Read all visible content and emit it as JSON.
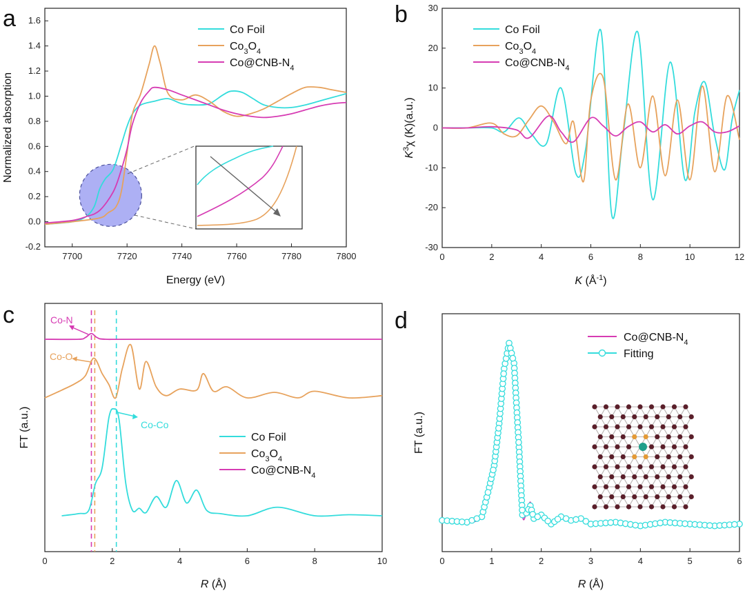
{
  "colors": {
    "cyan": "#33dcdc",
    "orange": "#e7a25c",
    "magenta": "#d63bb3",
    "gray": "#666666",
    "circle": "#8a8ef0"
  },
  "chart_data": [
    {
      "panel": "a",
      "type": "line",
      "xlabel": "Energy (eV)",
      "ylabel": "Normalized absorption",
      "xlim": [
        7690,
        7800
      ],
      "ylim": [
        -0.2,
        1.7
      ],
      "xticks": [
        7700,
        7720,
        7740,
        7760,
        7780,
        7800
      ],
      "xticklabels": [
        "7700",
        "7720",
        "7740",
        "7760",
        "7780",
        "7800"
      ],
      "yticks": [
        -0.2,
        0.0,
        0.2,
        0.4,
        0.6,
        0.8,
        1.0,
        1.2,
        1.4,
        1.6
      ],
      "yticklabels": [
        "-0.2",
        "0.0",
        "0.2",
        "0.4",
        "0.6",
        "0.8",
        "1.0",
        "1.2",
        "1.4",
        "1.6"
      ],
      "legend": [
        {
          "label": "Co Foil",
          "color": "#33dcdc"
        },
        {
          "label": "Co",
          "sub": "3",
          "label2": "O",
          "sub2": "4",
          "color": "#e7a25c"
        },
        {
          "label": "Co@CNB-N",
          "sub": "4",
          "color": "#d63bb3"
        }
      ],
      "series": [
        {
          "name": "Co Foil",
          "color": "#33dcdc",
          "x": [
            7690,
            7700,
            7705,
            7708,
            7710,
            7712,
            7715,
            7718,
            7720,
            7722,
            7725,
            7730,
            7735,
            7740,
            7745,
            7750,
            7755,
            7758,
            7762,
            7766,
            7770,
            7775,
            7780,
            7785,
            7790,
            7795,
            7800
          ],
          "y": [
            -0.02,
            0.0,
            0.04,
            0.12,
            0.26,
            0.34,
            0.42,
            0.62,
            0.76,
            0.86,
            0.93,
            0.96,
            0.98,
            0.94,
            0.93,
            0.94,
            1.01,
            1.04,
            1.03,
            0.98,
            0.93,
            0.91,
            0.91,
            0.93,
            0.96,
            0.99,
            1.02
          ]
        },
        {
          "name": "Co3O4",
          "color": "#e7a25c",
          "x": [
            7690,
            7700,
            7710,
            7713,
            7716,
            7718,
            7720,
            7722,
            7725,
            7728,
            7730,
            7732,
            7735,
            7740,
            7745,
            7750,
            7755,
            7760,
            7765,
            7770,
            7775,
            7780,
            7785,
            7790,
            7795,
            7800
          ],
          "y": [
            -0.02,
            0.0,
            0.03,
            0.07,
            0.12,
            0.25,
            0.55,
            0.86,
            1.02,
            1.25,
            1.4,
            1.27,
            1.02,
            0.97,
            1.01,
            0.96,
            0.88,
            0.84,
            0.86,
            0.9,
            0.96,
            1.02,
            1.07,
            1.07,
            1.05,
            1.03
          ]
        },
        {
          "name": "Co@CNB-N4",
          "color": "#d63bb3",
          "x": [
            7690,
            7700,
            7705,
            7710,
            7715,
            7718,
            7720,
            7722,
            7725,
            7728,
            7730,
            7735,
            7740,
            7745,
            7750,
            7755,
            7760,
            7765,
            7770,
            7775,
            7780,
            7785,
            7790,
            7795,
            7800
          ],
          "y": [
            -0.01,
            0.01,
            0.04,
            0.09,
            0.24,
            0.42,
            0.58,
            0.78,
            0.95,
            1.04,
            1.07,
            1.05,
            1.01,
            0.97,
            0.93,
            0.89,
            0.86,
            0.84,
            0.83,
            0.84,
            0.86,
            0.89,
            0.92,
            0.94,
            0.95
          ]
        }
      ]
    },
    {
      "panel": "b",
      "type": "line",
      "xlabel": "K",
      "xlabel_unit": "(Å",
      "xlabel_sup": "-1",
      "ylabel": "K",
      "ylabel_sup": "3",
      "ylabel_rest": "χ (K)(a.u.)",
      "xlim": [
        0,
        12
      ],
      "ylim": [
        -30,
        30
      ],
      "xticks": [
        0,
        2,
        4,
        6,
        8,
        10,
        12
      ],
      "xticklabels": [
        "0",
        "2",
        "4",
        "6",
        "8",
        "10",
        "12"
      ],
      "yticks": [
        -30,
        -20,
        -10,
        0,
        10,
        20,
        30
      ],
      "yticklabels": [
        "-30",
        "-20",
        "-10",
        "0",
        "10",
        "20",
        "30"
      ],
      "legend": [
        {
          "label": "Co Foil",
          "color": "#33dcdc"
        },
        {
          "label": "Co",
          "sub": "3",
          "label2": "O",
          "sub2": "4",
          "color": "#e7a25c"
        },
        {
          "label": "Co@CNB-N",
          "sub": "4",
          "color": "#d63bb3"
        }
      ],
      "series": [
        {
          "name": "Co Foil",
          "color": "#33dcdc",
          "x": [
            0,
            1,
            2,
            2.5,
            3.1,
            3.6,
            4.2,
            4.8,
            5.4,
            5.8,
            6.4,
            6.85,
            7.3,
            7.9,
            8.5,
            9.2,
            9.8,
            10.2,
            10.6,
            11.0,
            11.4,
            11.7,
            12
          ],
          "y": [
            0,
            0,
            0,
            -1,
            2.5,
            -1.5,
            -4,
            10,
            -11.5,
            -5,
            24.5,
            -22,
            -2,
            24,
            -18,
            16.5,
            -13,
            4,
            11.5,
            -2,
            -10.5,
            2,
            9.5
          ]
        },
        {
          "name": "Co3O4",
          "color": "#e7a25c",
          "x": [
            0,
            1,
            2,
            2.5,
            3.0,
            3.5,
            4.0,
            4.5,
            5.0,
            5.3,
            5.7,
            6.0,
            6.5,
            7.0,
            7.5,
            8.0,
            8.5,
            9.0,
            9.5,
            10.0,
            10.5,
            11.0,
            11.5,
            12
          ],
          "y": [
            0,
            0,
            1.2,
            -1.5,
            -2,
            2,
            5.5,
            1.5,
            -4,
            1.5,
            -13.5,
            7,
            12.5,
            -13,
            6,
            -10,
            8,
            -12,
            7,
            -13,
            10.5,
            -11,
            8,
            -3
          ]
        },
        {
          "name": "Co@CNB-N4",
          "color": "#d63bb3",
          "x": [
            0,
            1,
            2,
            3,
            3.5,
            4.3,
            4.8,
            5.3,
            6.0,
            6.5,
            7.0,
            7.5,
            8.0,
            8.5,
            9.0,
            9.5,
            10.0,
            10.5,
            11.0,
            11.5,
            12
          ],
          "y": [
            0,
            0,
            0.3,
            -0.5,
            -2.5,
            3,
            -1,
            -3.5,
            2.5,
            0.5,
            -2,
            0.3,
            1.5,
            -1,
            0.8,
            -1.5,
            0.5,
            1.5,
            -1,
            -1,
            0.5
          ]
        }
      ]
    },
    {
      "panel": "c",
      "type": "line",
      "xlabel": "R",
      "xlabel_unit": "(Å)",
      "ylabel": "FT (a.u.)",
      "xlim": [
        0,
        10
      ],
      "xticks": [
        0,
        2,
        4,
        6,
        8,
        10
      ],
      "xticklabels": [
        "0",
        "2",
        "4",
        "6",
        "8",
        "10"
      ],
      "legend": [
        {
          "label": "Co Foil",
          "color": "#33dcdc"
        },
        {
          "label": "Co",
          "sub": "3",
          "label2": "O",
          "sub2": "4",
          "color": "#e7a25c"
        },
        {
          "label": "Co@CNB-N",
          "sub": "4",
          "color": "#d63bb3"
        }
      ],
      "annotations": [
        {
          "text": "Co-N",
          "color": "#d63bb3"
        },
        {
          "text": "Co-O",
          "color": "#e7a25c"
        },
        {
          "text": "Co-Co",
          "color": "#33dcdc"
        }
      ],
      "vlines": [
        1.38,
        1.48,
        2.12
      ],
      "series": [
        {
          "name": "Co Foil",
          "color": "#33dcdc",
          "offset": 0,
          "x": [
            0.5,
            1.0,
            1.3,
            1.5,
            1.7,
            1.9,
            2.05,
            2.2,
            2.4,
            2.6,
            2.8,
            3.0,
            3.3,
            3.6,
            3.9,
            4.2,
            4.5,
            4.8,
            5.2,
            6.0,
            6.9,
            8.0,
            9.0,
            10.0
          ],
          "y": [
            0,
            0.02,
            0.05,
            0.3,
            0.45,
            0.92,
            1.0,
            0.9,
            0.3,
            0.05,
            0.07,
            0.03,
            0.18,
            0.08,
            0.33,
            0.12,
            0.24,
            0.05,
            0.02,
            0.0,
            0.08,
            0.0,
            0.01,
            0.0
          ]
        },
        {
          "name": "Co3O4",
          "color": "#e7a25c",
          "offset": 1.0,
          "x": [
            0.0,
            0.5,
            0.9,
            1.2,
            1.45,
            1.7,
            1.9,
            2.1,
            2.3,
            2.55,
            2.8,
            3.0,
            3.3,
            3.6,
            4.0,
            4.5,
            4.7,
            5.0,
            5.4,
            6.0,
            6.8,
            7.5,
            8.0,
            9.0,
            10.0
          ],
          "y": [
            0.0,
            0.07,
            0.13,
            0.2,
            0.36,
            0.22,
            0.12,
            0.0,
            0.27,
            0.48,
            0.08,
            0.33,
            0.1,
            0.02,
            0.08,
            0.07,
            0.22,
            0.06,
            0.1,
            0.0,
            0.05,
            0.0,
            0.06,
            0.0,
            0.02
          ]
        },
        {
          "name": "Co@CNB-N4",
          "color": "#d63bb3",
          "offset": 2.0,
          "x": [
            0,
            1.0,
            1.2,
            1.38,
            1.55,
            1.8,
            3,
            10
          ],
          "y": [
            0,
            0.0,
            0.02,
            0.07,
            0.02,
            0.0,
            0,
            0
          ]
        }
      ]
    },
    {
      "panel": "d",
      "type": "line",
      "xlabel": "R",
      "xlabel_unit": "(Å)",
      "ylabel": "FT (a.u.)",
      "xlim": [
        0,
        6
      ],
      "xticks": [
        0,
        1,
        2,
        3,
        4,
        5,
        6
      ],
      "xticklabels": [
        "0",
        "1",
        "2",
        "3",
        "4",
        "5",
        "6"
      ],
      "legend": [
        {
          "label": "Co@CNB-N",
          "sub": "4",
          "color": "#d63bb3"
        },
        {
          "label": "Fitting",
          "color": "#33dcdc"
        }
      ],
      "series": [
        {
          "name": "Co@CNB-N4",
          "color": "#d63bb3",
          "x": [
            0.0,
            0.5,
            0.8,
            0.95,
            1.05,
            1.15,
            1.25,
            1.35,
            1.45,
            1.55,
            1.62,
            1.7,
            1.78,
            1.85,
            2.0,
            2.2,
            2.4,
            2.6,
            2.8,
            3.0,
            3.5,
            4.0,
            4.5,
            5.0,
            5.5,
            6.0
          ],
          "y": [
            0.02,
            0.01,
            0.04,
            0.2,
            0.32,
            0.55,
            0.85,
            0.99,
            0.88,
            0.42,
            0.05,
            0.06,
            0.12,
            0.03,
            0.06,
            0.0,
            0.04,
            0.02,
            0.03,
            0.0,
            0.01,
            -0.01,
            0.01,
            0.0,
            -0.01,
            0.0
          ]
        },
        {
          "name": "Fitting",
          "color": "#33dcdc",
          "markers": "circle",
          "x": [
            0.0,
            0.5,
            0.8,
            0.95,
            1.05,
            1.15,
            1.25,
            1.35,
            1.45,
            1.55,
            1.62,
            1.7,
            1.78,
            1.85,
            2.0,
            2.2,
            2.4,
            2.6,
            2.8,
            3.0,
            3.5,
            4.0,
            4.5,
            5.0,
            5.5,
            6.0
          ],
          "y": [
            0.02,
            0.01,
            0.04,
            0.2,
            0.32,
            0.55,
            0.85,
            0.99,
            0.88,
            0.42,
            0.05,
            0.06,
            0.1,
            0.03,
            0.05,
            0.0,
            0.04,
            0.02,
            0.03,
            0.0,
            0.01,
            -0.01,
            0.01,
            0.0,
            -0.01,
            0.0
          ]
        }
      ]
    }
  ],
  "panels": {
    "a": "a",
    "b": "b",
    "c": "c",
    "d": "d"
  }
}
